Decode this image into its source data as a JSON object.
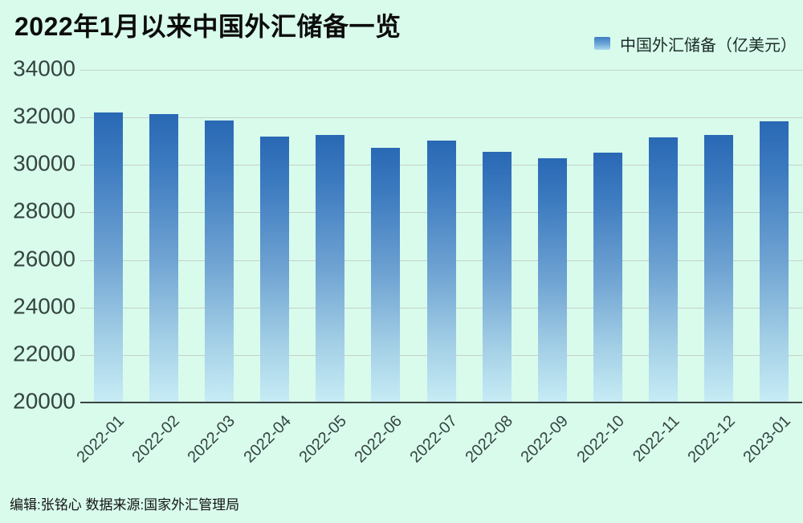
{
  "page": {
    "background_color": "#d8fbec"
  },
  "header": {
    "title": "2022年1月以来中国外汇储备一览",
    "legend": {
      "label": "中国外汇储备（亿美元）",
      "swatch_color_top": "#3c7cc2",
      "swatch_color_bottom": "#a9d9ee"
    }
  },
  "chart_data": {
    "type": "bar",
    "title": "2022年1月以来中国外汇储备一览",
    "series_name": "中国外汇储备（亿美元）",
    "categories": [
      "2022-01",
      "2022-02",
      "2022-03",
      "2022-04",
      "2022-05",
      "2022-06",
      "2022-07",
      "2022-08",
      "2022-09",
      "2022-10",
      "2022-11",
      "2022-12",
      "2023-01"
    ],
    "values": [
      32216,
      32138,
      31880,
      31197,
      31278,
      30713,
      31041,
      30549,
      30290,
      30524,
      31175,
      31277,
      31845
    ],
    "ylim": [
      20000,
      34000
    ],
    "y_ticks": [
      20000,
      22000,
      24000,
      26000,
      28000,
      30000,
      32000,
      34000
    ],
    "xlabel": "",
    "ylabel": "",
    "grid": true,
    "legend_position": "top-right",
    "bar_color_top": "#2968b4",
    "bar_color_bottom": "#c7ecf5",
    "x_label_rotation_deg": 45
  },
  "footer": {
    "credit": "编辑:张铭心  数据来源:国家外汇管理局"
  }
}
